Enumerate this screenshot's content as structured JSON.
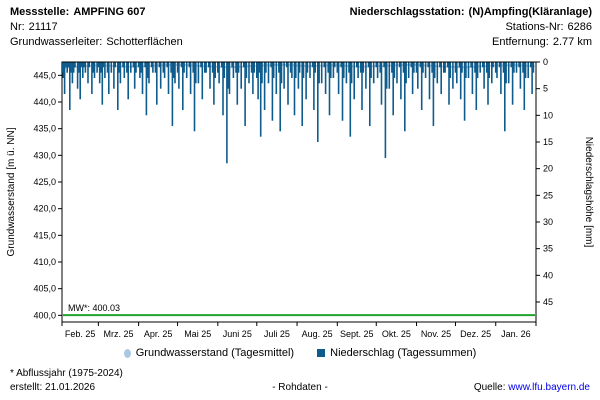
{
  "header": {
    "messstelle_label": "Messstelle:",
    "messstelle_value": "AMPFING 607",
    "station_label": "Niederschlagsstation:",
    "station_value": "(N)Ampfing(Kläranlage)",
    "nr_label": "Nr:",
    "nr_value": "21117",
    "stations_nr_label": "Stations-Nr:",
    "stations_nr_value": "6286",
    "gwl_label": "Grundwasserleiter:",
    "gwl_value": "Schotterflächen",
    "entfernung_label": "Entfernung:",
    "entfernung_value": "2.77 km"
  },
  "footer": {
    "abflussjahr": "* Abflussjahr (1975-2024)",
    "erstellt": "erstellt:  21.01.2026",
    "rohdaten": "- Rohdaten -",
    "quelle_label": "Quelle:",
    "quelle_link": "www.lfu.bayern.de"
  },
  "chart_data": {
    "type": "bar",
    "title": "",
    "xlabel": "",
    "ylabel_left": "Grundwasserstand [m ü. NN]",
    "ylabel_right": "Niederschlagshöhe [mm]",
    "y_left_range": [
      398.75,
      447.5
    ],
    "y_right_range": [
      0,
      47.5
    ],
    "grid": false,
    "legend_position": "bottom",
    "days_total": 365,
    "month_starts": [
      0,
      28,
      59,
      89,
      120,
      150,
      181,
      212,
      242,
      273,
      303,
      334,
      365
    ],
    "x_tick_labels": [
      "Feb. 25",
      "Mrz. 25",
      "Apr. 25",
      "Mai 25",
      "Juni 25",
      "Juli 25",
      "Aug. 25",
      "Sept. 25",
      "Okt. 25",
      "Nov. 25",
      "Dez. 25",
      "Jan. 26"
    ],
    "y_left_ticks": [
      {
        "v": 445,
        "label": "445,0"
      },
      {
        "v": 440,
        "label": "440,0"
      },
      {
        "v": 435,
        "label": "435,0"
      },
      {
        "v": 430,
        "label": "430,0"
      },
      {
        "v": 425,
        "label": "425,0"
      },
      {
        "v": 420,
        "label": "420,0"
      },
      {
        "v": 415,
        "label": "415,0"
      },
      {
        "v": 410,
        "label": "410,0"
      },
      {
        "v": 405,
        "label": "405,0"
      },
      {
        "v": 400,
        "label": "400,0"
      }
    ],
    "y_right_ticks": [
      0,
      5,
      10,
      15,
      20,
      25,
      30,
      35,
      40,
      45
    ],
    "mw_line": {
      "label": "MW*: 400.03",
      "value": 400.03,
      "color": "#1FA22E"
    },
    "series": [
      {
        "name": "Grundwasserstand (Tagesmittel)",
        "type": "line",
        "color": "#A9C8E4",
        "points": [
          [
            0,
            446.4
          ],
          [
            15,
            446.7
          ],
          [
            30,
            446.9
          ],
          [
            50,
            446.6
          ],
          [
            70,
            446.8
          ],
          [
            90,
            447.0
          ],
          [
            110,
            446.7
          ],
          [
            130,
            446.5
          ],
          [
            150,
            446.8
          ],
          [
            170,
            447.0
          ],
          [
            190,
            446.7
          ],
          [
            210,
            446.9
          ],
          [
            230,
            446.6
          ],
          [
            250,
            446.8
          ],
          [
            270,
            447.0
          ],
          [
            290,
            446.7
          ],
          [
            310,
            446.5
          ],
          [
            330,
            446.8
          ],
          [
            350,
            446.9
          ],
          [
            364,
            446.7
          ]
        ]
      },
      {
        "name": "Niederschlag (Tagessummen)",
        "type": "bar",
        "color": "#0F5C8C",
        "points": [
          [
            0,
            2
          ],
          [
            1,
            3
          ],
          [
            2,
            6
          ],
          [
            3,
            1
          ],
          [
            4,
            2
          ],
          [
            5,
            1
          ],
          [
            6,
            9
          ],
          [
            7,
            2
          ],
          [
            8,
            4
          ],
          [
            9,
            2
          ],
          [
            10,
            1
          ],
          [
            12,
            5
          ],
          [
            13,
            2
          ],
          [
            14,
            7
          ],
          [
            15,
            1
          ],
          [
            16,
            3
          ],
          [
            17,
            1
          ],
          [
            18,
            2
          ],
          [
            20,
            4
          ],
          [
            21,
            1
          ],
          [
            23,
            6
          ],
          [
            24,
            2
          ],
          [
            25,
            3
          ],
          [
            27,
            2
          ],
          [
            28,
            1
          ],
          [
            29,
            4
          ],
          [
            30,
            2
          ],
          [
            31,
            8
          ],
          [
            32,
            1
          ],
          [
            33,
            3
          ],
          [
            35,
            2
          ],
          [
            36,
            6
          ],
          [
            38,
            2
          ],
          [
            40,
            5
          ],
          [
            41,
            1
          ],
          [
            43,
            9
          ],
          [
            44,
            2
          ],
          [
            45,
            4
          ],
          [
            47,
            1
          ],
          [
            48,
            3
          ],
          [
            50,
            2
          ],
          [
            51,
            7
          ],
          [
            53,
            2
          ],
          [
            55,
            1
          ],
          [
            56,
            5
          ],
          [
            57,
            2
          ],
          [
            59,
            1
          ],
          [
            60,
            3
          ],
          [
            61,
            2
          ],
          [
            62,
            6
          ],
          [
            64,
            1
          ],
          [
            65,
            10
          ],
          [
            66,
            3
          ],
          [
            67,
            4
          ],
          [
            69,
            1
          ],
          [
            70,
            2
          ],
          [
            72,
            2
          ],
          [
            73,
            8
          ],
          [
            75,
            1
          ],
          [
            76,
            5
          ],
          [
            78,
            2
          ],
          [
            79,
            3
          ],
          [
            81,
            1
          ],
          [
            82,
            6
          ],
          [
            84,
            2
          ],
          [
            85,
            12
          ],
          [
            86,
            3
          ],
          [
            87,
            4
          ],
          [
            89,
            2
          ],
          [
            90,
            5
          ],
          [
            92,
            1
          ],
          [
            93,
            9
          ],
          [
            94,
            2
          ],
          [
            96,
            3
          ],
          [
            98,
            1
          ],
          [
            99,
            6
          ],
          [
            101,
            2
          ],
          [
            102,
            13
          ],
          [
            103,
            4
          ],
          [
            105,
            4
          ],
          [
            107,
            1
          ],
          [
            108,
            7
          ],
          [
            110,
            2
          ],
          [
            111,
            2
          ],
          [
            113,
            1
          ],
          [
            114,
            5
          ],
          [
            116,
            2
          ],
          [
            117,
            8
          ],
          [
            118,
            3
          ],
          [
            120,
            2
          ],
          [
            121,
            4
          ],
          [
            123,
            1
          ],
          [
            124,
            10
          ],
          [
            125,
            3
          ],
          [
            127,
            19
          ],
          [
            128,
            5
          ],
          [
            129,
            6
          ],
          [
            131,
            1
          ],
          [
            132,
            3
          ],
          [
            134,
            2
          ],
          [
            135,
            8
          ],
          [
            136,
            2
          ],
          [
            138,
            5
          ],
          [
            140,
            1
          ],
          [
            141,
            12
          ],
          [
            142,
            3
          ],
          [
            144,
            4
          ],
          [
            146,
            2
          ],
          [
            147,
            6
          ],
          [
            148,
            2
          ],
          [
            150,
            3
          ],
          [
            151,
            7
          ],
          [
            152,
            2
          ],
          [
            153,
            14
          ],
          [
            154,
            4
          ],
          [
            156,
            9
          ],
          [
            157,
            2
          ],
          [
            159,
            4
          ],
          [
            161,
            1
          ],
          [
            162,
            11
          ],
          [
            163,
            3
          ],
          [
            165,
            6
          ],
          [
            167,
            2
          ],
          [
            168,
            13
          ],
          [
            169,
            4
          ],
          [
            171,
            5
          ],
          [
            173,
            1
          ],
          [
            174,
            8
          ],
          [
            176,
            2
          ],
          [
            177,
            3
          ],
          [
            179,
            10
          ],
          [
            180,
            3
          ],
          [
            182,
            5
          ],
          [
            183,
            2
          ],
          [
            185,
            12
          ],
          [
            186,
            3
          ],
          [
            188,
            7
          ],
          [
            189,
            2
          ],
          [
            191,
            3
          ],
          [
            193,
            1
          ],
          [
            194,
            9
          ],
          [
            195,
            2
          ],
          [
            197,
            15
          ],
          [
            198,
            4
          ],
          [
            200,
            4
          ],
          [
            202,
            1
          ],
          [
            203,
            6
          ],
          [
            205,
            2
          ],
          [
            206,
            10
          ],
          [
            207,
            3
          ],
          [
            209,
            3
          ],
          [
            210,
            1
          ],
          [
            212,
            2
          ],
          [
            213,
            6
          ],
          [
            215,
            1
          ],
          [
            216,
            11
          ],
          [
            217,
            3
          ],
          [
            219,
            4
          ],
          [
            221,
            2
          ],
          [
            222,
            14
          ],
          [
            223,
            4
          ],
          [
            225,
            7
          ],
          [
            227,
            1
          ],
          [
            228,
            3
          ],
          [
            230,
            2
          ],
          [
            231,
            9
          ],
          [
            232,
            2
          ],
          [
            234,
            5
          ],
          [
            236,
            1
          ],
          [
            237,
            12
          ],
          [
            238,
            3
          ],
          [
            240,
            4
          ],
          [
            242,
            1
          ],
          [
            243,
            3
          ],
          [
            245,
            2
          ],
          [
            246,
            8
          ],
          [
            248,
            1
          ],
          [
            249,
            18
          ],
          [
            250,
            5
          ],
          [
            252,
            5
          ],
          [
            254,
            2
          ],
          [
            255,
            10
          ],
          [
            256,
            3
          ],
          [
            258,
            4
          ],
          [
            260,
            1
          ],
          [
            261,
            7
          ],
          [
            263,
            2
          ],
          [
            264,
            13
          ],
          [
            265,
            4
          ],
          [
            267,
            3
          ],
          [
            269,
            1
          ],
          [
            270,
            6
          ],
          [
            271,
            2
          ],
          [
            273,
            2
          ],
          [
            274,
            5
          ],
          [
            276,
            1
          ],
          [
            277,
            9
          ],
          [
            278,
            2
          ],
          [
            280,
            3
          ],
          [
            282,
            1
          ],
          [
            283,
            7
          ],
          [
            285,
            2
          ],
          [
            286,
            12
          ],
          [
            287,
            3
          ],
          [
            289,
            4
          ],
          [
            291,
            1
          ],
          [
            292,
            6
          ],
          [
            294,
            2
          ],
          [
            295,
            2
          ],
          [
            297,
            1
          ],
          [
            298,
            8
          ],
          [
            299,
            3
          ],
          [
            301,
            5
          ],
          [
            303,
            2
          ],
          [
            304,
            4
          ],
          [
            306,
            1
          ],
          [
            307,
            7
          ],
          [
            308,
            2
          ],
          [
            310,
            11
          ],
          [
            311,
            3
          ],
          [
            313,
            3
          ],
          [
            315,
            1
          ],
          [
            316,
            6
          ],
          [
            318,
            2
          ],
          [
            319,
            9
          ],
          [
            320,
            3
          ],
          [
            322,
            2
          ],
          [
            324,
            1
          ],
          [
            325,
            5
          ],
          [
            327,
            2
          ],
          [
            328,
            8
          ],
          [
            329,
            3
          ],
          [
            331,
            4
          ],
          [
            332,
            1
          ],
          [
            334,
            2
          ],
          [
            335,
            3
          ],
          [
            337,
            1
          ],
          [
            338,
            6
          ],
          [
            340,
            2
          ],
          [
            341,
            13
          ],
          [
            342,
            4
          ],
          [
            344,
            4
          ],
          [
            346,
            1
          ],
          [
            347,
            8
          ],
          [
            348,
            2
          ],
          [
            350,
            2
          ],
          [
            352,
            1
          ],
          [
            353,
            5
          ],
          [
            355,
            2
          ],
          [
            356,
            9
          ],
          [
            357,
            3
          ],
          [
            359,
            3
          ],
          [
            361,
            1
          ],
          [
            362,
            6
          ],
          [
            363,
            2
          ]
        ]
      }
    ]
  }
}
